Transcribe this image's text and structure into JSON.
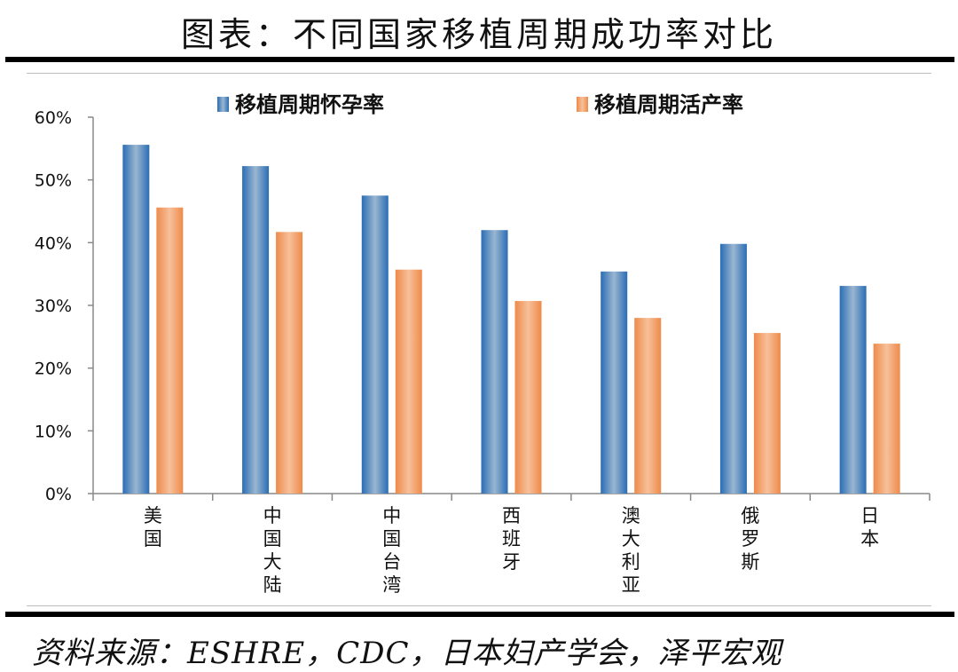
{
  "title": "图表：不同国家移植周期成功率对比",
  "source": "资料来源：ESHRE，CDC，日本妇产学会，泽平宏观",
  "chart_data": {
    "type": "bar",
    "categories": [
      "美国",
      "中国大陆",
      "中国台湾",
      "西班牙",
      "澳大利亚",
      "俄罗斯",
      "日本"
    ],
    "series": [
      {
        "name": "移植周期怀孕率",
        "color": "#3b7fc4",
        "values": [
          55.6,
          52.2,
          47.5,
          42.0,
          35.4,
          39.8,
          33.1
        ]
      },
      {
        "name": "移植周期活产率",
        "color": "#f0a06a",
        "values": [
          45.6,
          41.7,
          35.7,
          30.7,
          28.0,
          25.6,
          23.9
        ]
      }
    ],
    "yticks": [
      "0%",
      "10%",
      "20%",
      "30%",
      "40%",
      "50%",
      "60%"
    ],
    "ylim": [
      0,
      60
    ],
    "yunit": "%",
    "grid": false,
    "legend": "top"
  }
}
